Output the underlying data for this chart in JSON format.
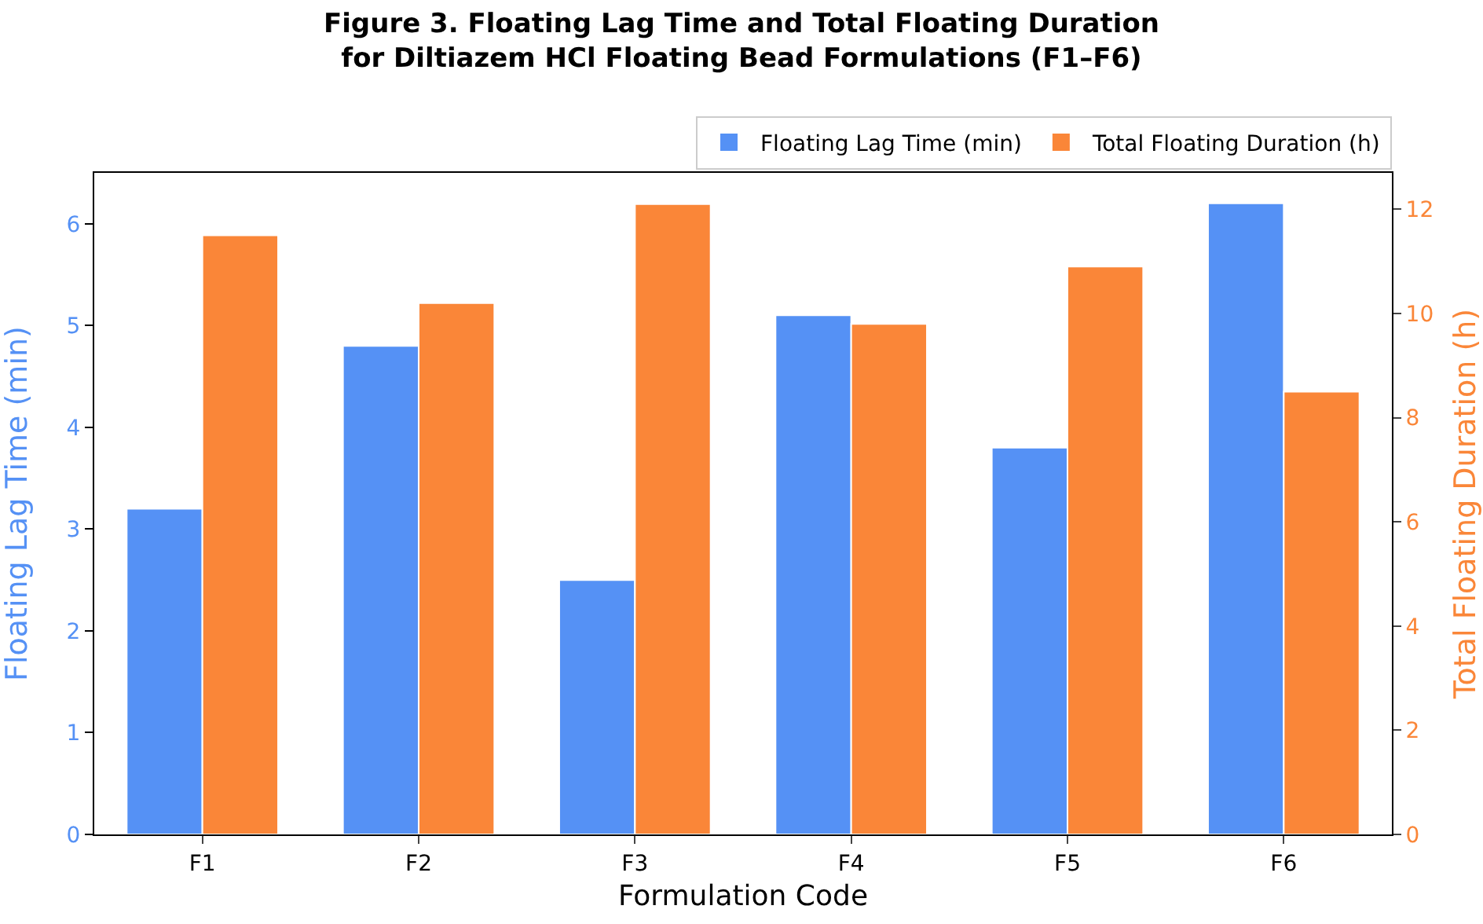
{
  "chart_data": {
    "type": "bar",
    "title": "Figure 3. Floating Lag Time and Total Floating Duration\nfor Diltiazem HCl Floating Bead Formulations (F1–F6)",
    "xlabel": "Formulation Code",
    "ylabel": "Floating Lag Time (min)",
    "y2label": "Total Floating Duration (h)",
    "categories": [
      "F1",
      "F2",
      "F3",
      "F4",
      "F5",
      "F6"
    ],
    "series": [
      {
        "name": "Floating Lag Time (min)",
        "color": "#5591f5",
        "values": [
          3.2,
          4.8,
          2.5,
          5.1,
          3.8,
          6.2
        ]
      },
      {
        "name": "Total Floating Duration (h)",
        "color": "#fa8638",
        "axis": "y2",
        "values": [
          11.5,
          10.2,
          12.1,
          9.8,
          10.9,
          8.5
        ]
      }
    ],
    "ylim": [
      0,
      6.5
    ],
    "yticks": [
      0,
      1,
      2,
      3,
      4,
      5,
      6
    ],
    "y2lim": [
      0,
      12.7
    ],
    "y2ticks": [
      0,
      2,
      4,
      6,
      8,
      10,
      12
    ],
    "grid": false,
    "legend": "top right"
  }
}
